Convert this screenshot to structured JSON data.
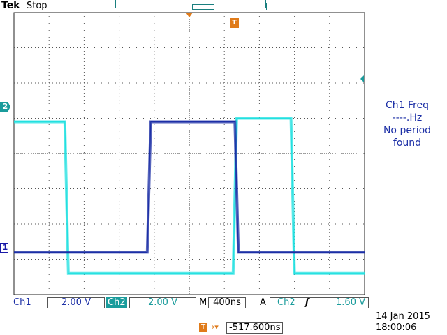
{
  "header": {
    "brand": "Tek",
    "status": "Stop"
  },
  "markers": {
    "ch2": "2",
    "ch1": "1",
    "trigger": "T"
  },
  "readout": {
    "line1": "Ch1 Freq",
    "line2": "----.Hz",
    "line3": "No period",
    "line4": "found"
  },
  "bottom": {
    "ch1_label": "Ch1",
    "ch1_scale": "2.00 V",
    "ch2_label": "Ch2",
    "ch2_scale": "2.00 V",
    "timebase_label": "M",
    "timebase": "400ns",
    "acq_mode": "A",
    "trig_source": "Ch2",
    "trig_slope": "ʃ",
    "trig_level": "1.60 V",
    "date": "14 Jan  2015",
    "time": "18:00:06",
    "trig_offset": "-517.600ns"
  },
  "colors": {
    "ch1": "#1c2fa6",
    "ch2": "#22e0e0",
    "accent": "#e07b1a"
  },
  "chart_data": {
    "type": "line",
    "xlabel": "",
    "ylabel": "",
    "grid": true,
    "divisions": {
      "x": 10,
      "y": 8
    },
    "series": [
      {
        "channel": "Ch2",
        "points": [
          [
            0.0,
            4.9
          ],
          [
            1.45,
            4.9
          ],
          [
            1.55,
            0.6
          ],
          [
            6.25,
            0.6
          ],
          [
            6.35,
            5.0
          ],
          [
            7.9,
            5.0
          ],
          [
            8.0,
            0.6
          ],
          [
            10.0,
            0.6
          ]
        ]
      },
      {
        "channel": "Ch1",
        "points": [
          [
            0.0,
            1.2
          ],
          [
            3.8,
            1.2
          ],
          [
            3.9,
            4.9
          ],
          [
            6.3,
            4.9
          ],
          [
            6.4,
            1.2
          ],
          [
            10.0,
            1.2
          ]
        ]
      }
    ]
  }
}
